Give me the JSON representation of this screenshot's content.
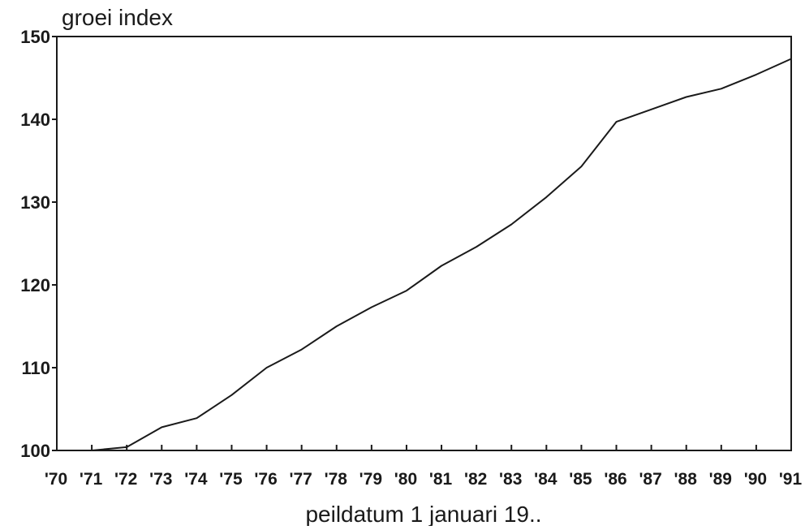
{
  "chart_data": {
    "type": "line",
    "title": "",
    "ylabel": "groei index",
    "xlabel": "peildatum 1 januari 19..",
    "ylim": [
      100,
      150
    ],
    "xlim": [
      1970,
      1991
    ],
    "yticks": [
      100,
      110,
      120,
      130,
      140,
      150
    ],
    "ytick_labels": [
      "100",
      "110",
      "120",
      "130",
      "140",
      "150"
    ],
    "x": [
      1970,
      1971,
      1972,
      1973,
      1974,
      1975,
      1976,
      1977,
      1978,
      1979,
      1980,
      1981,
      1982,
      1983,
      1984,
      1985,
      1986,
      1987,
      1988,
      1989,
      1990,
      1991
    ],
    "xtick_labels": [
      "'70",
      "'71",
      "'72",
      "'73",
      "'74",
      "'75",
      "'76",
      "'77",
      "'78",
      "'79",
      "'80",
      "'81",
      "'82",
      "'83",
      "'84",
      "'85",
      "'86",
      "'87",
      "'88",
      "'89",
      "'90",
      "'91"
    ],
    "series": [
      {
        "values": [
          100.0,
          100.0,
          100.4,
          102.8,
          103.9,
          106.7,
          110.0,
          112.2,
          115.0,
          117.3,
          119.3,
          122.3,
          124.6,
          127.3,
          130.6,
          134.3,
          139.7,
          141.2,
          142.7,
          143.7,
          145.4,
          147.3
        ]
      }
    ],
    "grid": false,
    "legend": "none",
    "colors": {
      "line": "#1a1a1a",
      "axes": "#1a1a1a"
    }
  }
}
